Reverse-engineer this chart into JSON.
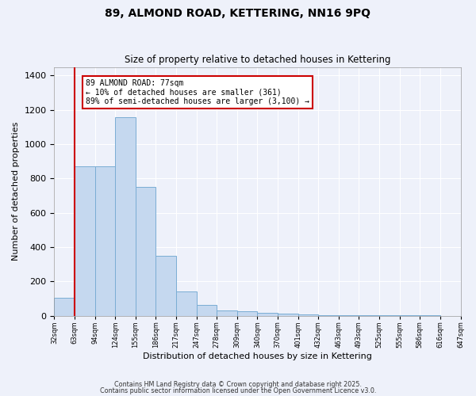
{
  "title": "89, ALMOND ROAD, KETTERING, NN16 9PQ",
  "subtitle": "Size of property relative to detached houses in Kettering",
  "xlabel": "Distribution of detached houses by size in Kettering",
  "ylabel": "Number of detached properties",
  "bar_values": [
    105,
    870,
    870,
    1155,
    750,
    350,
    140,
    62,
    30,
    27,
    15,
    10,
    8,
    5,
    4,
    3,
    2,
    2,
    1
  ],
  "bin_labels": [
    "32sqm",
    "63sqm",
    "94sqm",
    "124sqm",
    "155sqm",
    "186sqm",
    "217sqm",
    "247sqm",
    "278sqm",
    "309sqm",
    "340sqm",
    "370sqm",
    "401sqm",
    "432sqm",
    "463sqm",
    "493sqm",
    "525sqm",
    "555sqm",
    "586sqm",
    "616sqm",
    "647sqm"
  ],
  "bar_color": "#c5d8ef",
  "bar_edge_color": "#7aadd4",
  "vline_color": "#cc0000",
  "vline_position": 1,
  "annotation_text": "89 ALMOND ROAD: 77sqm\n← 10% of detached houses are smaller (361)\n89% of semi-detached houses are larger (3,100) →",
  "annotation_box_color": "white",
  "annotation_box_edge": "#cc0000",
  "ylim": [
    0,
    1450
  ],
  "yticks": [
    0,
    200,
    400,
    600,
    800,
    1000,
    1200,
    1400
  ],
  "bg_color": "#eef1fa",
  "grid_color": "white",
  "footer1": "Contains HM Land Registry data © Crown copyright and database right 2025.",
  "footer2": "Contains public sector information licensed under the Open Government Licence v3.0."
}
